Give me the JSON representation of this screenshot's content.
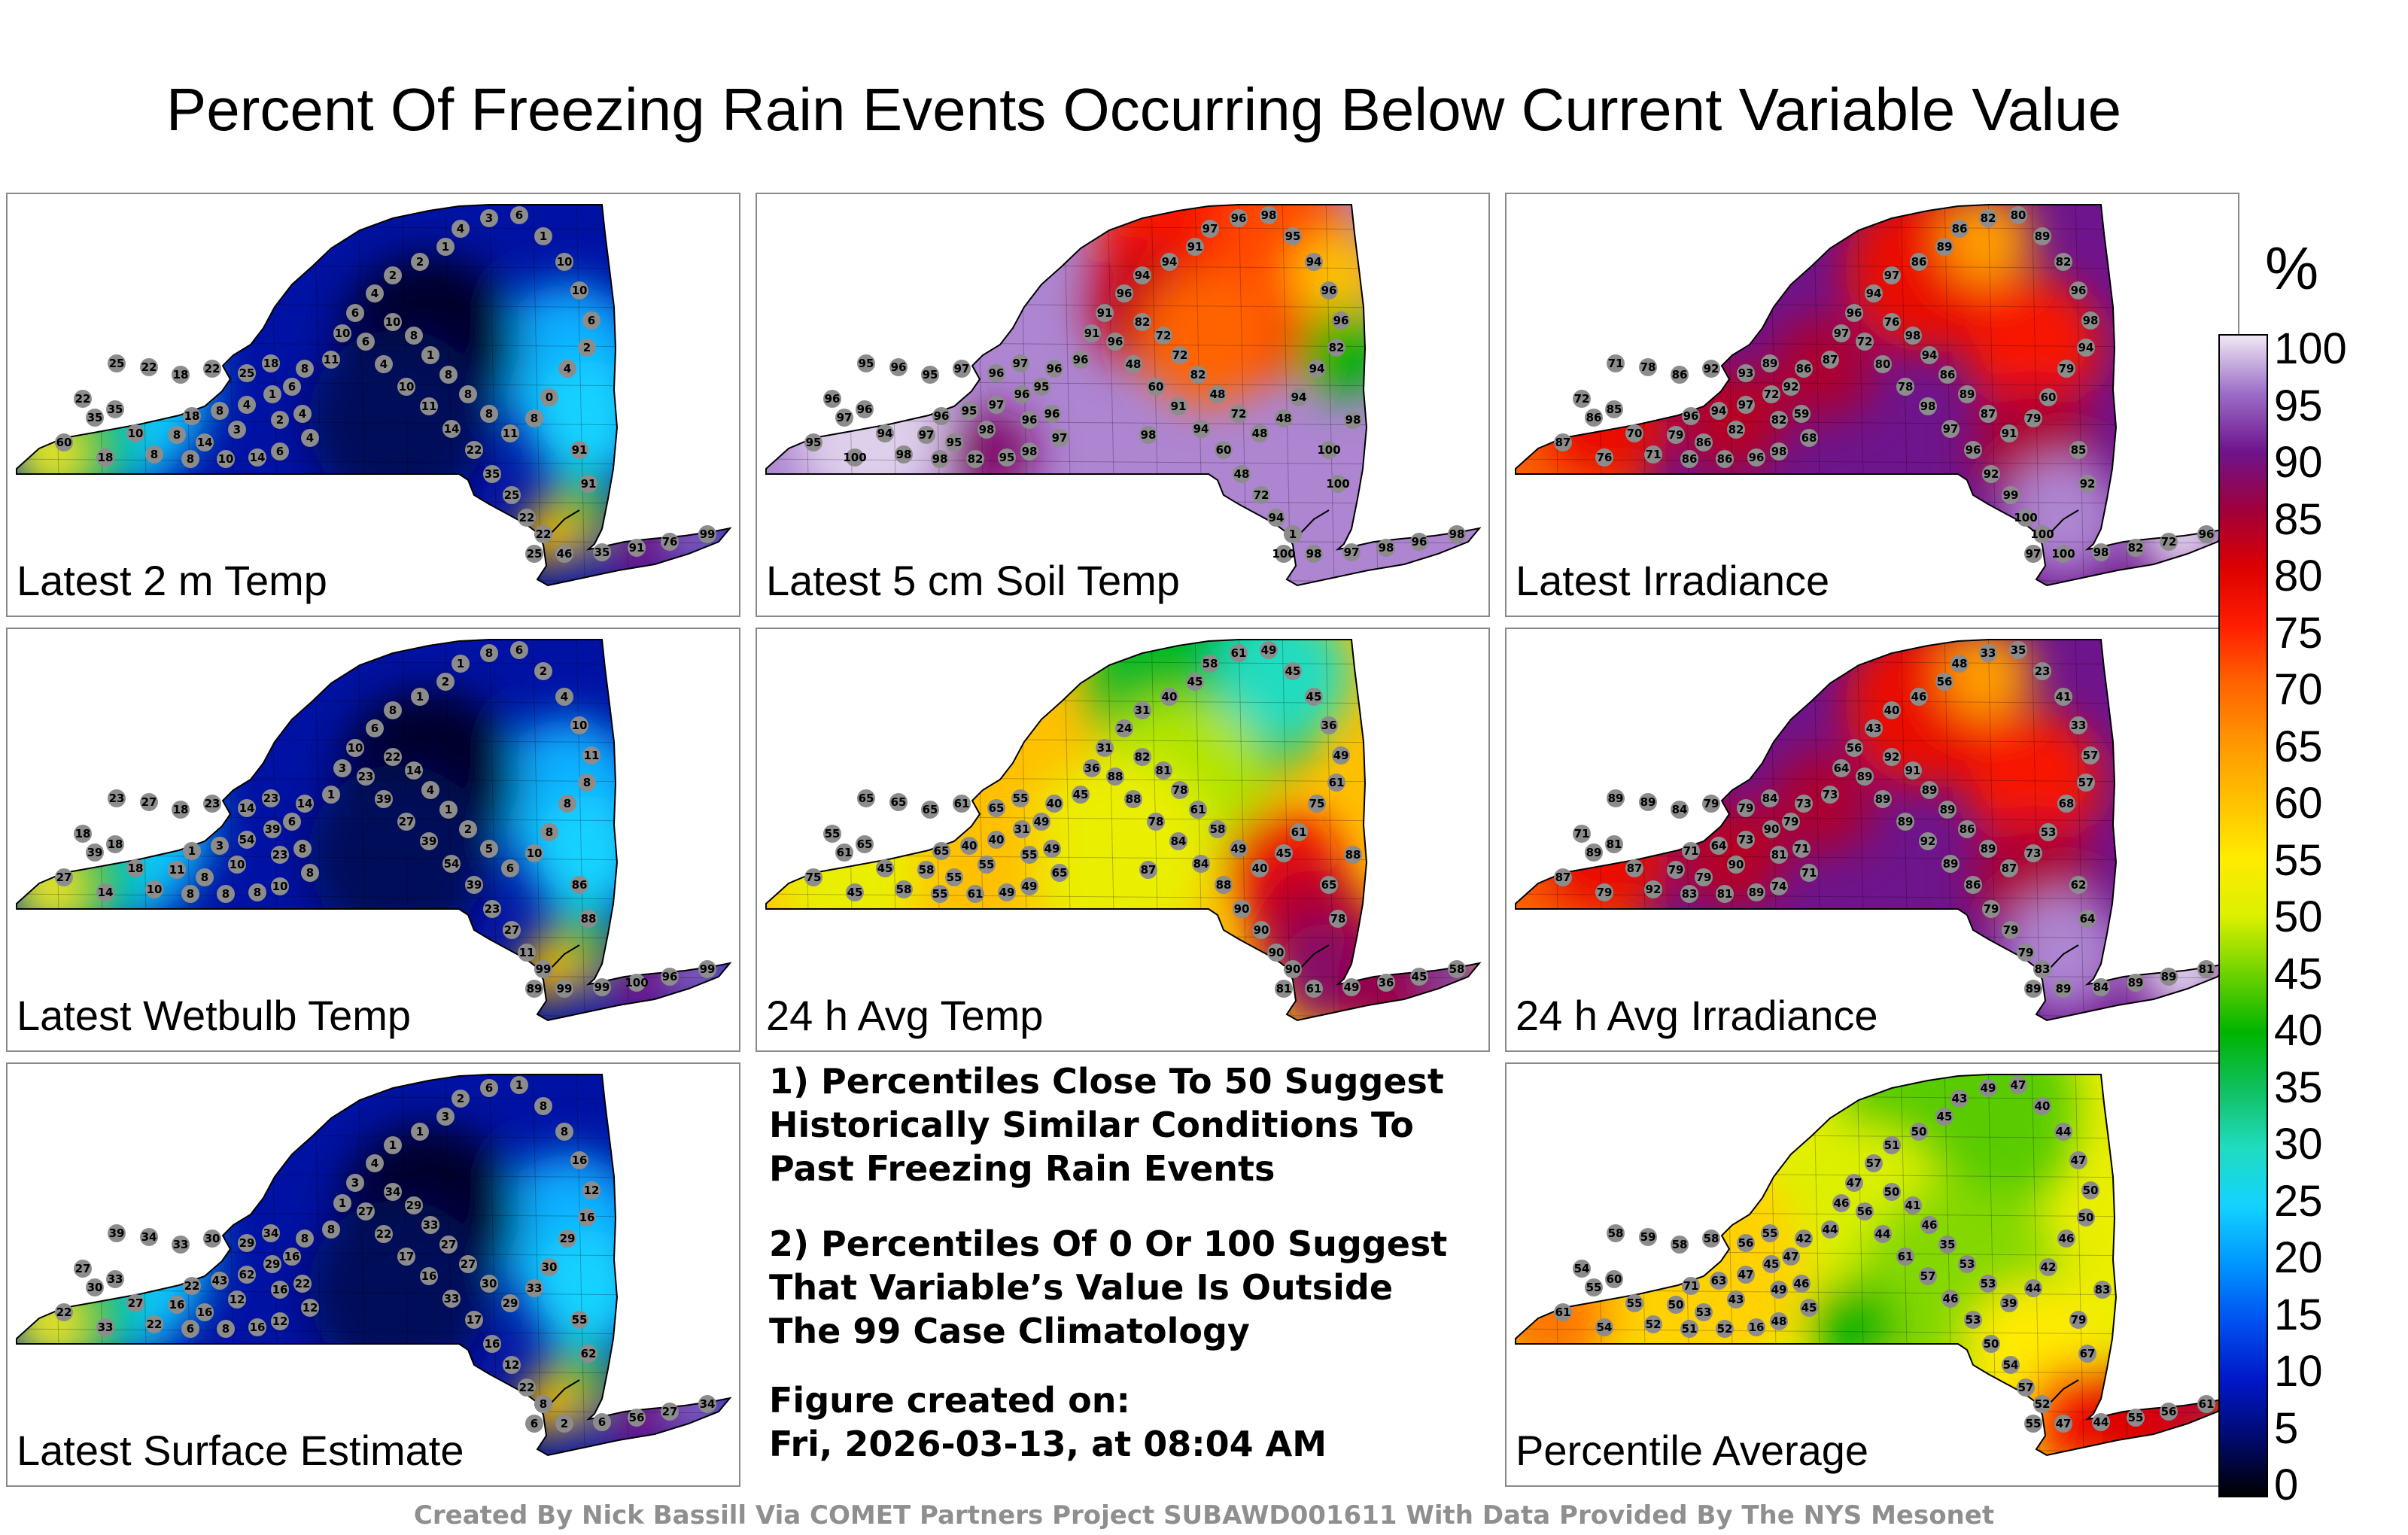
{
  "title": "Percent Of Freezing Rain Events Occurring Below Current Variable Value",
  "panels": [
    {
      "label": "Latest 2 m Temp",
      "field": "cold",
      "values": [
        25,
        22,
        18,
        22,
        25,
        18,
        60,
        35,
        35,
        22,
        10,
        18,
        8,
        8,
        14,
        18,
        8,
        4,
        1,
        2,
        3,
        8,
        10,
        14,
        6,
        4,
        4,
        6,
        8,
        11,
        10,
        6,
        4,
        2,
        2,
        1,
        4,
        3,
        6,
        1,
        10,
        10,
        6,
        2,
        4,
        0,
        8,
        11,
        8,
        8,
        8,
        1,
        8,
        10,
        6,
        4,
        10,
        11,
        14,
        22,
        35,
        25,
        22,
        22,
        25,
        46,
        35,
        91,
        76,
        99,
        91,
        91
      ]
    },
    {
      "label": "Latest 5 cm Soil Temp",
      "field": "soil",
      "values": [
        95,
        96,
        95,
        97,
        96,
        97,
        95,
        97,
        96,
        96,
        94,
        100,
        98,
        97,
        95,
        96,
        95,
        97,
        96,
        96,
        98,
        98,
        82,
        95,
        98,
        97,
        96,
        95,
        96,
        96,
        91,
        91,
        96,
        94,
        94,
        91,
        97,
        96,
        98,
        95,
        94,
        96,
        96,
        82,
        94,
        94,
        48,
        48,
        72,
        48,
        82,
        72,
        72,
        82,
        96,
        48,
        60,
        91,
        94,
        60,
        48,
        72,
        94,
        1,
        100,
        98,
        97,
        98,
        96,
        98,
        100,
        100,
        98,
        98
      ]
    },
    {
      "label": "Latest Irradiance",
      "field": "irr",
      "values": [
        71,
        78,
        86,
        92,
        93,
        89,
        87,
        86,
        85,
        72,
        70,
        76,
        71,
        79,
        86,
        96,
        94,
        97,
        72,
        82,
        82,
        86,
        86,
        96,
        98,
        68,
        59,
        92,
        86,
        87,
        97,
        96,
        94,
        97,
        86,
        89,
        86,
        82,
        80,
        89,
        82,
        96,
        98,
        94,
        79,
        60,
        79,
        91,
        87,
        89,
        86,
        94,
        98,
        76,
        72,
        80,
        78,
        98,
        97,
        96,
        92,
        99,
        100,
        100,
        97,
        100,
        98,
        82,
        72,
        96,
        92,
        85
      ]
    },
    {
      "label": "Latest Wetbulb Temp",
      "field": "cold",
      "values": [
        23,
        27,
        18,
        23,
        14,
        23,
        27,
        39,
        18,
        18,
        18,
        14,
        10,
        11,
        8,
        1,
        3,
        54,
        39,
        23,
        10,
        8,
        8,
        8,
        10,
        8,
        8,
        6,
        14,
        1,
        3,
        10,
        6,
        8,
        1,
        2,
        1,
        8,
        6,
        2,
        4,
        10,
        11,
        8,
        8,
        8,
        10,
        6,
        5,
        2,
        1,
        4,
        14,
        22,
        23,
        39,
        27,
        39,
        54,
        39,
        23,
        27,
        11,
        99,
        89,
        99,
        99,
        100,
        96,
        99,
        88,
        86
      ]
    },
    {
      "label": "24 h Avg Temp",
      "field": "warm",
      "values": [
        65,
        65,
        65,
        61,
        65,
        55,
        75,
        61,
        65,
        55,
        45,
        45,
        58,
        58,
        55,
        65,
        40,
        40,
        31,
        55,
        55,
        55,
        61,
        49,
        49,
        65,
        49,
        49,
        40,
        45,
        36,
        31,
        24,
        31,
        40,
        45,
        58,
        61,
        49,
        45,
        45,
        36,
        49,
        61,
        75,
        61,
        45,
        40,
        49,
        58,
        61,
        78,
        81,
        82,
        88,
        88,
        78,
        84,
        84,
        88,
        90,
        90,
        90,
        90,
        81,
        61,
        49,
        36,
        45,
        58,
        78,
        65,
        88,
        87
      ]
    },
    {
      "label": "24 h Avg Irradiance",
      "field": "irr",
      "values": [
        89,
        89,
        84,
        79,
        79,
        84,
        87,
        89,
        81,
        71,
        87,
        79,
        92,
        79,
        79,
        71,
        64,
        73,
        90,
        81,
        90,
        83,
        81,
        89,
        74,
        71,
        71,
        79,
        73,
        73,
        64,
        56,
        43,
        40,
        46,
        56,
        48,
        33,
        35,
        23,
        41,
        33,
        57,
        57,
        68,
        53,
        73,
        87,
        89,
        86,
        89,
        89,
        91,
        92,
        89,
        89,
        89,
        92,
        89,
        86,
        79,
        79,
        79,
        83,
        89,
        89,
        84,
        89,
        89,
        81,
        64,
        62
      ]
    },
    {
      "label": "Latest Surface Estimate",
      "field": "cold",
      "values": [
        39,
        34,
        33,
        30,
        29,
        34,
        22,
        30,
        33,
        27,
        27,
        33,
        22,
        16,
        16,
        22,
        43,
        62,
        29,
        16,
        12,
        6,
        8,
        16,
        12,
        12,
        22,
        16,
        8,
        8,
        1,
        3,
        4,
        1,
        1,
        3,
        2,
        6,
        1,
        8,
        8,
        16,
        12,
        16,
        29,
        30,
        33,
        29,
        30,
        27,
        27,
        33,
        29,
        34,
        27,
        22,
        17,
        16,
        33,
        17,
        16,
        12,
        22,
        8,
        6,
        2,
        6,
        56,
        27,
        34,
        62,
        55
      ]
    },
    {
      "label": "Percentile Average",
      "field": "avg",
      "values": [
        58,
        59,
        58,
        58,
        56,
        55,
        61,
        55,
        60,
        54,
        55,
        54,
        52,
        50,
        53,
        71,
        63,
        47,
        45,
        49,
        43,
        51,
        52,
        16,
        48,
        45,
        46,
        47,
        42,
        44,
        46,
        47,
        57,
        51,
        50,
        45,
        43,
        49,
        47,
        40,
        44,
        47,
        50,
        50,
        46,
        42,
        44,
        39,
        53,
        53,
        35,
        46,
        41,
        50,
        56,
        44,
        61,
        57,
        46,
        53,
        50,
        54,
        57,
        52,
        55,
        47,
        44,
        55,
        56,
        61,
        67,
        79,
        83
      ]
    }
  ],
  "notes": {
    "note1": "1) Percentiles Close To 50 Suggest\nHistorically Similar Conditions To\nPast Freezing Rain Events",
    "note2": "2) Percentiles Of 0 Or 100 Suggest\nThat Variable’s Value Is Outside\nThe 99 Case Climatology",
    "created_label": "Figure created on:",
    "created_date": "Fri, 2026-03-13, at 08:04 AM"
  },
  "legend": {
    "unit": "%",
    "ticks": [
      "100",
      "95",
      "90",
      "85",
      "80",
      "75",
      "70",
      "65",
      "60",
      "55",
      "50",
      "45",
      "40",
      "35",
      "30",
      "25",
      "20",
      "15",
      "10",
      "5",
      "0"
    ],
    "range": [
      0,
      100
    ],
    "stops": [
      [
        0,
        "#000000"
      ],
      [
        5,
        "#000a6e"
      ],
      [
        10,
        "#0018c8"
      ],
      [
        15,
        "#0050f0"
      ],
      [
        20,
        "#0096ff"
      ],
      [
        25,
        "#14d2ff"
      ],
      [
        30,
        "#20dcc0"
      ],
      [
        35,
        "#10c060"
      ],
      [
        40,
        "#00b400"
      ],
      [
        45,
        "#6ed200"
      ],
      [
        50,
        "#dcf000"
      ],
      [
        55,
        "#ffeb00"
      ],
      [
        60,
        "#ffc000"
      ],
      [
        65,
        "#ff9600"
      ],
      [
        70,
        "#ff6400"
      ],
      [
        75,
        "#ff1e00"
      ],
      [
        80,
        "#dc0000"
      ],
      [
        85,
        "#a0003c"
      ],
      [
        90,
        "#6e148c"
      ],
      [
        95,
        "#9c6cc8"
      ],
      [
        100,
        "#efe8f4"
      ]
    ]
  },
  "footer": "Created By Nick Bassill Via COMET Partners Project SUBAWD001611 With Data Provided By The NYS Mesonet"
}
